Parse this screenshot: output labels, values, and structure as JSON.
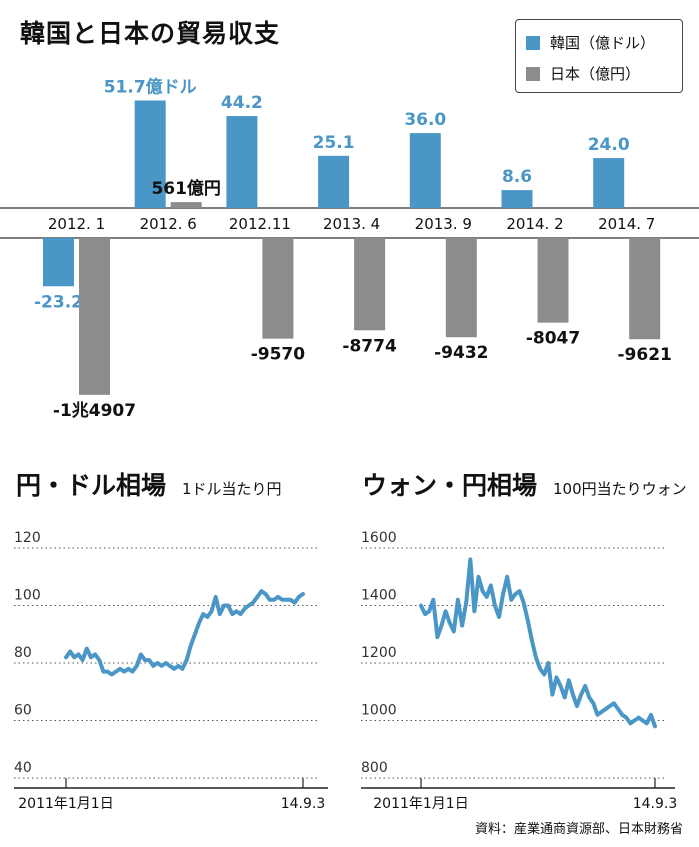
{
  "chart_title": "韓国と日本の貿易収支",
  "legend": [
    {
      "label": "韓国（億ドル）",
      "color": "#4a96c6"
    },
    {
      "label": "日本（億円）",
      "color": "#8c8c8c"
    }
  ],
  "source": "資料：産業通商資源部、日本財務省",
  "chart_data": [
    {
      "type": "bar",
      "title": "韓国と日本の貿易収支",
      "categories": [
        "2012. 1",
        "2012. 6",
        "2012.11",
        "2013. 4",
        "2013. 9",
        "2014. 2",
        "2014. 7"
      ],
      "series": [
        {
          "name": "韓国（億ドル）",
          "color": "#4a96c6",
          "values": [
            -23.2,
            51.7,
            44.2,
            25.1,
            36.0,
            8.6,
            24.0
          ],
          "labels": [
            "-23.2",
            "51.7億ドル",
            "44.2",
            "25.1",
            "36.0",
            "8.6",
            "24.0"
          ]
        },
        {
          "name": "日本（億円）",
          "color": "#8c8c8c",
          "values": [
            -14907,
            561,
            -9570,
            -8774,
            -9432,
            -8047,
            -9621
          ],
          "labels": [
            "-1兆4907",
            "561億円",
            "-9570",
            "-8774",
            "-9432",
            "-8047",
            "-9621"
          ]
        }
      ]
    },
    {
      "type": "line",
      "title": "円・ドル相場",
      "subtitle": "1ドル当たり円",
      "ylim": [
        40,
        120
      ],
      "yticks": [
        "40",
        "60",
        "80",
        "100",
        "120"
      ],
      "x_start_label": "2011年1月1日",
      "x_end_label": "14.9.3",
      "color": "#4a96c6",
      "values": [
        82,
        84,
        82,
        83,
        81,
        85,
        82,
        83,
        81,
        77,
        77,
        76,
        77,
        78,
        77,
        78,
        77,
        79,
        83,
        81,
        81,
        79,
        80,
        79,
        80,
        79,
        78,
        79,
        78,
        81,
        86,
        90,
        94,
        97,
        96,
        98,
        103,
        97,
        100,
        100,
        97,
        98,
        97,
        99,
        100,
        101,
        103,
        105,
        104,
        102,
        102,
        103,
        102,
        102,
        102,
        101,
        103,
        104
      ]
    },
    {
      "type": "line",
      "title": "ウォン・円相場",
      "subtitle": "100円当たりウォン",
      "ylim": [
        800,
        1600
      ],
      "yticks": [
        "800",
        "1000",
        "1200",
        "1400",
        "1600"
      ],
      "x_start_label": "2011年1月1日",
      "x_end_label": "14.9.3",
      "color": "#4a96c6",
      "values": [
        1400,
        1370,
        1380,
        1420,
        1290,
        1330,
        1380,
        1340,
        1310,
        1420,
        1330,
        1410,
        1560,
        1380,
        1500,
        1450,
        1430,
        1470,
        1400,
        1360,
        1440,
        1500,
        1420,
        1440,
        1450,
        1410,
        1350,
        1280,
        1220,
        1180,
        1160,
        1200,
        1090,
        1150,
        1120,
        1080,
        1140,
        1090,
        1050,
        1090,
        1120,
        1080,
        1060,
        1020,
        1030,
        1040,
        1050,
        1060,
        1040,
        1020,
        1010,
        990,
        1000,
        1010,
        1000,
        990,
        1020,
        980
      ]
    }
  ]
}
